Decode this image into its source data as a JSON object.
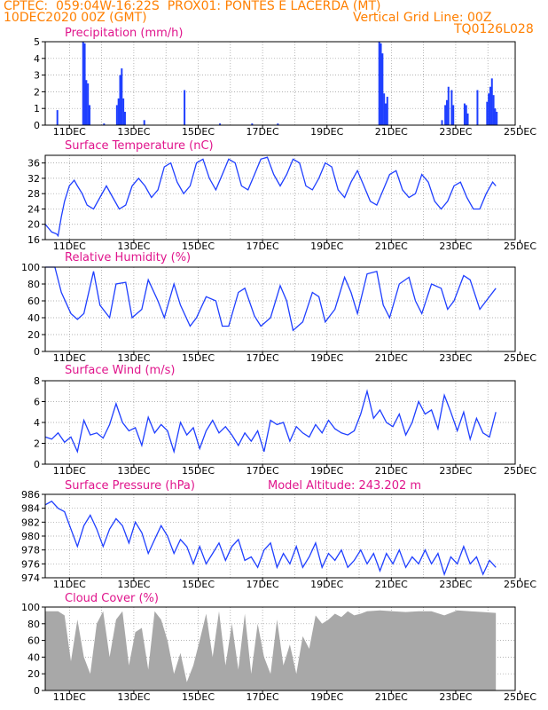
{
  "header": {
    "line1": "CPTEC:  059:04W-16:22S  PROX01: PONTES E LACERDA (MT)",
    "line2": "10DEC2020 00Z (GMT)",
    "right1": "Vertical Grid Line: 00Z",
    "right2": "TQ0126L028"
  },
  "colors": {
    "accent": "#ff7f00",
    "title": "#e0158c",
    "line": "#1f3fff",
    "bar": "#1f3fff",
    "cloud": "#a8a8a8"
  },
  "x_ticks": [
    "11DEC",
    "13DEC",
    "15DEC",
    "17DEC",
    "19DEC",
    "21DEC",
    "23DEC",
    "25DEC"
  ],
  "chart_data": [
    {
      "id": "precip",
      "type": "bar",
      "title": "Precipitation (mm/h)",
      "ylim": [
        0,
        5
      ],
      "yticks": [
        0,
        1,
        2,
        3,
        4,
        5
      ],
      "x": [
        0.35,
        1.15,
        1.2,
        1.25,
        1.3,
        1.35,
        1.8,
        2.2,
        2.25,
        2.3,
        2.35,
        2.4,
        2.45,
        3.05,
        4.3,
        5.4,
        6.4,
        7.2,
        10.35,
        10.4,
        10.45,
        10.5,
        10.55,
        10.6,
        12.3,
        12.4,
        12.45,
        12.5,
        12.6,
        12.65,
        13.0,
        13.05,
        13.1,
        13.4,
        13.7,
        13.75,
        13.8,
        13.85,
        13.9,
        13.95,
        14.0
      ],
      "values": [
        0.9,
        5.0,
        4.9,
        2.7,
        2.5,
        1.2,
        0.1,
        1.2,
        1.6,
        3.0,
        3.4,
        1.6,
        0.8,
        0.3,
        2.1,
        0.1,
        0.1,
        0.1,
        5.0,
        4.9,
        4.3,
        1.9,
        1.3,
        1.7,
        0.3,
        1.2,
        1.5,
        2.3,
        2.1,
        1.2,
        1.3,
        1.2,
        0.7,
        2.1,
        1.4,
        1.9,
        2.3,
        2.8,
        1.8,
        1.0,
        0.8
      ]
    },
    {
      "id": "temp",
      "type": "line",
      "title": "Surface Temperature (nC)",
      "ylim": [
        16,
        38
      ],
      "yticks": [
        16,
        20,
        24,
        28,
        32,
        36
      ],
      "x": [
        0,
        0.1,
        0.2,
        0.35,
        0.4,
        0.5,
        0.6,
        0.75,
        0.9,
        1.0,
        1.15,
        1.3,
        1.5,
        1.7,
        1.9,
        2.1,
        2.3,
        2.5,
        2.7,
        2.9,
        3.1,
        3.3,
        3.5,
        3.7,
        3.9,
        4.1,
        4.3,
        4.5,
        4.7,
        4.9,
        5.1,
        5.3,
        5.5,
        5.7,
        5.9,
        6.1,
        6.3,
        6.5,
        6.7,
        6.9,
        7.1,
        7.3,
        7.5,
        7.7,
        7.9,
        8.1,
        8.3,
        8.5,
        8.7,
        8.9,
        9.1,
        9.3,
        9.5,
        9.7,
        9.9,
        10.1,
        10.3,
        10.5,
        10.7,
        10.9,
        11.1,
        11.3,
        11.5,
        11.7,
        11.9,
        12.1,
        12.3,
        12.5,
        12.7,
        12.9,
        13.1,
        13.3,
        13.5,
        13.7,
        13.9,
        14.0
      ],
      "values": [
        20,
        19,
        18,
        17.5,
        17,
        22,
        26,
        30,
        31.5,
        30,
        28,
        25,
        24,
        27,
        30,
        27,
        24,
        25,
        30,
        32,
        30,
        27,
        29,
        35,
        36,
        31,
        28,
        30,
        36,
        37,
        32,
        29,
        33,
        37,
        36,
        30,
        29,
        33,
        37,
        37.5,
        33,
        30,
        33,
        37,
        36,
        30,
        29,
        32,
        36,
        35,
        29,
        27,
        31,
        34,
        30,
        26,
        25,
        29,
        33,
        34,
        29,
        27,
        28,
        33,
        31,
        26,
        24,
        26,
        30,
        31,
        27,
        24,
        24,
        28,
        31,
        30
      ]
    },
    {
      "id": "rh",
      "type": "line",
      "title": "Relative Humidity (%)",
      "ylim": [
        0,
        100
      ],
      "yticks": [
        0,
        20,
        40,
        60,
        80,
        100
      ],
      "x": [
        0,
        0.3,
        0.5,
        0.8,
        1.0,
        1.2,
        1.5,
        1.7,
        2.0,
        2.2,
        2.5,
        2.7,
        3.0,
        3.2,
        3.5,
        3.7,
        4.0,
        4.2,
        4.5,
        4.7,
        5.0,
        5.3,
        5.5,
        5.7,
        6.0,
        6.2,
        6.5,
        6.7,
        7.0,
        7.3,
        7.5,
        7.7,
        8.0,
        8.3,
        8.5,
        8.7,
        9.0,
        9.3,
        9.5,
        9.7,
        10.0,
        10.3,
        10.5,
        10.7,
        11.0,
        11.3,
        11.5,
        11.7,
        12.0,
        12.3,
        12.5,
        12.7,
        13.0,
        13.2,
        13.5,
        13.7,
        14.0
      ],
      "values": [
        100,
        100,
        70,
        45,
        38,
        45,
        95,
        55,
        40,
        80,
        82,
        40,
        50,
        85,
        60,
        40,
        80,
        55,
        30,
        40,
        65,
        60,
        30,
        30,
        70,
        75,
        42,
        30,
        40,
        78,
        60,
        25,
        35,
        70,
        65,
        35,
        50,
        88,
        70,
        45,
        92,
        95,
        55,
        40,
        80,
        88,
        60,
        45,
        80,
        75,
        50,
        60,
        90,
        85,
        50,
        60,
        75
      ]
    },
    {
      "id": "wind",
      "type": "line",
      "title": "Surface Wind (m/s)",
      "ylim": [
        0,
        8
      ],
      "yticks": [
        0,
        2,
        4,
        6,
        8
      ],
      "x": [
        0,
        0.2,
        0.4,
        0.6,
        0.8,
        1.0,
        1.2,
        1.4,
        1.6,
        1.8,
        2.0,
        2.2,
        2.4,
        2.6,
        2.8,
        3.0,
        3.2,
        3.4,
        3.6,
        3.8,
        4.0,
        4.2,
        4.4,
        4.6,
        4.8,
        5.0,
        5.2,
        5.4,
        5.6,
        5.8,
        6.0,
        6.2,
        6.4,
        6.6,
        6.8,
        7.0,
        7.2,
        7.4,
        7.6,
        7.8,
        8.0,
        8.2,
        8.4,
        8.6,
        8.8,
        9.0,
        9.2,
        9.4,
        9.6,
        9.8,
        10.0,
        10.2,
        10.4,
        10.6,
        10.8,
        11.0,
        11.2,
        11.4,
        11.6,
        11.8,
        12.0,
        12.2,
        12.4,
        12.6,
        12.8,
        13.0,
        13.2,
        13.4,
        13.6,
        13.8,
        14.0
      ],
      "values": [
        2.6,
        2.4,
        3.0,
        2.1,
        2.6,
        1.2,
        4.2,
        2.8,
        3.0,
        2.5,
        3.8,
        5.8,
        4.0,
        3.2,
        3.5,
        1.8,
        4.5,
        3.0,
        3.8,
        3.2,
        1.2,
        4.0,
        2.8,
        3.5,
        1.5,
        3.2,
        4.2,
        3.0,
        3.6,
        2.8,
        1.8,
        3.0,
        2.2,
        3.2,
        1.2,
        4.2,
        3.8,
        4.0,
        2.2,
        3.6,
        3.0,
        2.6,
        3.8,
        3.0,
        4.2,
        3.4,
        3.0,
        2.8,
        3.2,
        4.8,
        7.0,
        4.4,
        5.2,
        4.0,
        3.6,
        4.8,
        2.8,
        4.0,
        6.0,
        4.8,
        5.2,
        3.4,
        6.6,
        5.0,
        3.2,
        5.0,
        2.4,
        4.4,
        3.0,
        2.6,
        5.0
      ]
    },
    {
      "id": "pressure",
      "type": "line",
      "title": "Surface Pressure (hPa)",
      "annotation": "Model Altitude: 243.202 m",
      "ylim": [
        974,
        986
      ],
      "yticks": [
        974,
        976,
        978,
        980,
        982,
        984,
        986
      ],
      "x": [
        0,
        0.2,
        0.4,
        0.6,
        0.8,
        1.0,
        1.2,
        1.4,
        1.6,
        1.8,
        2.0,
        2.2,
        2.4,
        2.6,
        2.8,
        3.0,
        3.2,
        3.4,
        3.6,
        3.8,
        4.0,
        4.2,
        4.4,
        4.6,
        4.8,
        5.0,
        5.2,
        5.4,
        5.6,
        5.8,
        6.0,
        6.2,
        6.4,
        6.6,
        6.8,
        7.0,
        7.2,
        7.4,
        7.6,
        7.8,
        8.0,
        8.2,
        8.4,
        8.6,
        8.8,
        9.0,
        9.2,
        9.4,
        9.6,
        9.8,
        10.0,
        10.2,
        10.4,
        10.6,
        10.8,
        11.0,
        11.2,
        11.4,
        11.6,
        11.8,
        12.0,
        12.2,
        12.4,
        12.6,
        12.8,
        13.0,
        13.2,
        13.4,
        13.6,
        13.8,
        14.0
      ],
      "values": [
        984.5,
        985.0,
        984.0,
        983.5,
        981.0,
        978.5,
        981.5,
        983.0,
        981.0,
        978.5,
        981.0,
        982.5,
        981.5,
        979.0,
        982.0,
        980.5,
        977.5,
        979.5,
        981.5,
        980.0,
        977.5,
        979.5,
        978.5,
        976.0,
        978.5,
        976.0,
        977.5,
        979.0,
        976.5,
        978.5,
        979.5,
        976.5,
        977.0,
        975.5,
        978.0,
        979.0,
        975.5,
        977.5,
        976.0,
        978.5,
        975.5,
        977.0,
        979.0,
        975.5,
        977.5,
        976.5,
        978.0,
        975.5,
        976.5,
        978.0,
        976.0,
        977.5,
        975.0,
        977.5,
        976.0,
        978.0,
        975.5,
        977.0,
        976.0,
        978.0,
        976.0,
        977.5,
        974.5,
        977.0,
        976.0,
        978.5,
        976.0,
        977.0,
        974.5,
        976.5,
        975.5
      ]
    },
    {
      "id": "cloud",
      "type": "area",
      "title": "Cloud Cover (%)",
      "ylim": [
        0,
        100
      ],
      "yticks": [
        0,
        20,
        40,
        60,
        80,
        100
      ],
      "x": [
        0,
        0.4,
        0.6,
        0.8,
        1.0,
        1.2,
        1.4,
        1.6,
        1.8,
        2.0,
        2.2,
        2.4,
        2.6,
        2.8,
        3.0,
        3.2,
        3.4,
        3.6,
        3.8,
        4.0,
        4.2,
        4.4,
        4.6,
        4.8,
        5.0,
        5.2,
        5.4,
        5.6,
        5.8,
        6.0,
        6.2,
        6.4,
        6.6,
        6.8,
        7.0,
        7.2,
        7.4,
        7.6,
        7.8,
        8.0,
        8.2,
        8.4,
        8.6,
        8.8,
        9.0,
        9.2,
        9.4,
        9.6,
        9.8,
        10.0,
        10.4,
        10.8,
        11.2,
        11.6,
        12.0,
        12.4,
        12.8,
        13.2,
        13.6,
        14.0
      ],
      "values": [
        95,
        95,
        90,
        35,
        85,
        40,
        20,
        80,
        95,
        40,
        85,
        95,
        30,
        70,
        75,
        25,
        95,
        85,
        60,
        20,
        45,
        10,
        30,
        60,
        92,
        40,
        95,
        30,
        80,
        25,
        92,
        20,
        80,
        40,
        20,
        85,
        30,
        55,
        20,
        65,
        50,
        90,
        80,
        85,
        92,
        88,
        95,
        90,
        92,
        95,
        96,
        95,
        94,
        95,
        95,
        90,
        96,
        95,
        94,
        93
      ]
    }
  ]
}
